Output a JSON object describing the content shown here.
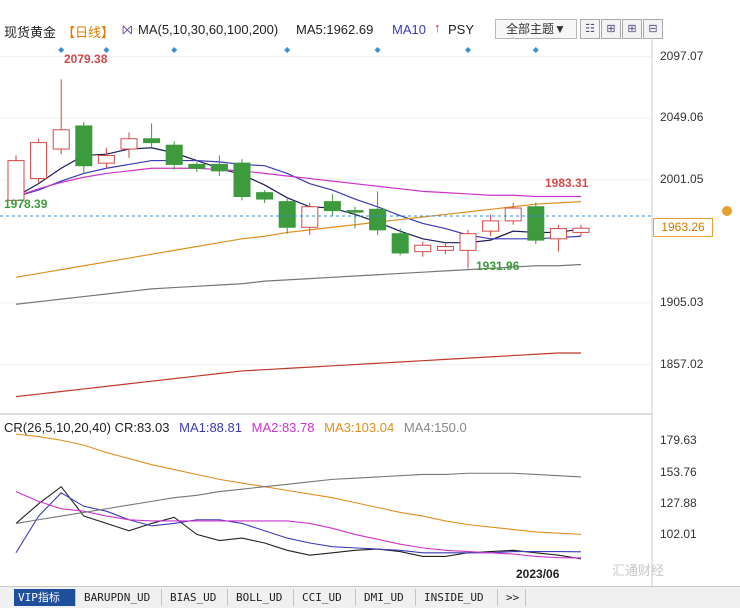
{
  "header": {
    "title": "现货黄金",
    "period": "【日线】",
    "ma_spec": "MA(5,10,30,60,100,200)",
    "ma5": "MA5:1962.69",
    "ma10": "MA10",
    "psy": "PSY",
    "theme_button": "全部主题▼"
  },
  "current_price": "1963.26",
  "indicator": {
    "cr": "CR(26,5,10,20,40) CR:83.03",
    "ma1": "MA1:88.81",
    "ma2": "MA2:83.78",
    "ma3": "MA3:103.04",
    "ma4": "MA4:150.0"
  },
  "x_label": "2023/06",
  "watermark": "汇通财经",
  "tabs": [
    "VIP指标",
    "BARUPDN_UD",
    "BIAS_UD",
    "BOLL_UD",
    "CCI_UD",
    "DMI_UD",
    "INSIDE_UD",
    ">>"
  ],
  "colors": {
    "up": "#d24a4a",
    "down": "#3d9a3d",
    "ma5": "#1a1a5a",
    "ma10": "#3b3bb8",
    "ma30": "#cc33cc",
    "ma60": "#e09020",
    "ma100": "#777777",
    "ma200": "#c0392b"
  },
  "chart_data": [
    {
      "type": "candlestick",
      "title": "现货黄金 日线",
      "ylim": [
        1820,
        2110
      ],
      "y_ticks": [
        2097.07,
        2049.06,
        2001.05,
        1963.26,
        1905.03,
        1857.02
      ],
      "annotations": [
        {
          "label": "2079.38",
          "value": 2079.38
        },
        {
          "label": "1983.31",
          "value": 1983.31
        },
        {
          "label": "1978.39",
          "value": 1978.39
        },
        {
          "label": "1931.96",
          "value": 1931.96
        }
      ],
      "candles": [
        {
          "o": 1985,
          "c": 2016,
          "h": 2020,
          "l": 1980
        },
        {
          "o": 2002,
          "c": 2030,
          "h": 2033,
          "l": 1999
        },
        {
          "o": 2025,
          "c": 2040,
          "h": 2079.38,
          "l": 2021
        },
        {
          "o": 2043,
          "c": 2012,
          "h": 2046,
          "l": 2006
        },
        {
          "o": 2014,
          "c": 2020,
          "h": 2026,
          "l": 2010
        },
        {
          "o": 2025,
          "c": 2033,
          "h": 2038,
          "l": 2018
        },
        {
          "o": 2033,
          "c": 2030,
          "h": 2045,
          "l": 2026
        },
        {
          "o": 2028,
          "c": 2013,
          "h": 2031,
          "l": 2009
        },
        {
          "o": 2013,
          "c": 2010,
          "h": 2015,
          "l": 2007
        },
        {
          "o": 2013,
          "c": 2008,
          "h": 2020,
          "l": 2004
        },
        {
          "o": 2014,
          "c": 1988,
          "h": 2017,
          "l": 1985
        },
        {
          "o": 1991,
          "c": 1986,
          "h": 1993,
          "l": 1983
        },
        {
          "o": 1984,
          "c": 1964,
          "h": 1986,
          "l": 1959
        },
        {
          "o": 1964,
          "c": 1980,
          "h": 1983,
          "l": 1958
        },
        {
          "o": 1984,
          "c": 1977,
          "h": 1990,
          "l": 1973
        },
        {
          "o": 1977,
          "c": 1976,
          "h": 1980,
          "l": 1963
        },
        {
          "o": 1978,
          "c": 1962,
          "h": 1992,
          "l": 1958
        },
        {
          "o": 1959,
          "c": 1944,
          "h": 1963,
          "l": 1942
        },
        {
          "o": 1945,
          "c": 1950,
          "h": 1953,
          "l": 1941
        },
        {
          "o": 1946,
          "c": 1949,
          "h": 1952,
          "l": 1943
        },
        {
          "o": 1946,
          "c": 1959,
          "h": 1962,
          "l": 1931.96
        },
        {
          "o": 1961,
          "c": 1969,
          "h": 1974,
          "l": 1957
        },
        {
          "o": 1969,
          "c": 1979,
          "h": 1983,
          "l": 1966
        },
        {
          "o": 1980,
          "c": 1954,
          "h": 1983.31,
          "l": 1951
        },
        {
          "o": 1955,
          "c": 1963,
          "h": 1966,
          "l": 1945
        },
        {
          "o": 1960,
          "c": 1963.26,
          "h": 1966,
          "l": 1957
        }
      ],
      "series": [
        {
          "name": "MA5",
          "color": "#1a1a5a",
          "values": [
            1988,
            1998,
            2010,
            2020,
            2021,
            2025,
            2026,
            2022,
            2016,
            2010,
            2005,
            1997,
            1987,
            1980,
            1979,
            1974,
            1968,
            1961,
            1955,
            1952,
            1952,
            1954,
            1961,
            1960,
            1960,
            1962.69
          ]
        },
        {
          "name": "MA10",
          "color": "#3b3bb8",
          "values": [
            1988,
            1993,
            2000,
            2006,
            2010,
            2013,
            2016,
            2016,
            2016,
            2015,
            2013,
            2012,
            2006,
            1998,
            1993,
            1986,
            1980,
            1973,
            1967,
            1963,
            1958,
            1955,
            1955,
            1955,
            1956,
            1957
          ]
        },
        {
          "name": "MA30",
          "color": "#cc33cc",
          "values": [
            1988,
            1994,
            1999,
            2003,
            2006,
            2008,
            2010,
            2010,
            2010,
            2009,
            2008,
            2006,
            2004,
            2002,
            2000,
            1998,
            1996,
            1994,
            1992,
            1991,
            1990,
            1989,
            1989,
            1988,
            1988,
            1988
          ]
        },
        {
          "name": "MA60",
          "color": "#e09020",
          "values": [
            1925,
            1928,
            1931,
            1934,
            1937,
            1940,
            1943,
            1946,
            1949,
            1952,
            1955,
            1957,
            1960,
            1962,
            1964,
            1966,
            1968,
            1970,
            1972,
            1974,
            1976,
            1978,
            1980,
            1982,
            1983,
            1984
          ]
        },
        {
          "name": "MA100",
          "color": "#777777",
          "values": [
            1904,
            1906,
            1908,
            1910,
            1912,
            1914,
            1916,
            1917,
            1918,
            1919,
            1920,
            1922,
            1923,
            1924,
            1925,
            1926,
            1927,
            1928,
            1929,
            1930,
            1931,
            1932,
            1933,
            1934,
            1934,
            1935
          ]
        },
        {
          "name": "MA200",
          "color": "#c0392b",
          "values": [
            1832,
            1834,
            1836,
            1838,
            1840,
            1842,
            1844,
            1846,
            1848,
            1850,
            1852,
            1853,
            1854,
            1855,
            1856,
            1857,
            1858,
            1859,
            1860,
            1861,
            1862,
            1863,
            1864,
            1865,
            1866,
            1866
          ]
        }
      ]
    },
    {
      "type": "line",
      "title": "CR(26,5,10,20,40)",
      "ylim": [
        78,
        190
      ],
      "y_ticks": [
        179.63,
        153.76,
        127.88,
        102.01
      ],
      "series": [
        {
          "name": "CR",
          "color": "#222222",
          "values": [
            112,
            128,
            142,
            118,
            112,
            106,
            112,
            117,
            103,
            98,
            100,
            96,
            90,
            86,
            88,
            90,
            91,
            89,
            85,
            85,
            88,
            89,
            90,
            88,
            86,
            83.03
          ]
        },
        {
          "name": "MA1",
          "color": "#3b3bb8",
          "values": [
            88,
            118,
            137,
            126,
            122,
            115,
            110,
            112,
            115,
            115,
            112,
            106,
            100,
            96,
            93,
            92,
            91,
            90,
            88,
            88,
            88,
            88,
            89,
            89,
            89,
            88.81
          ]
        },
        {
          "name": "MA2",
          "color": "#cc33cc",
          "values": [
            138,
            130,
            124,
            122,
            118,
            115,
            114,
            114,
            114,
            114,
            114,
            114,
            114,
            112,
            108,
            103,
            99,
            95,
            92,
            90,
            89,
            88,
            87,
            85,
            84,
            83.78
          ]
        },
        {
          "name": "MA3",
          "color": "#e09020",
          "values": [
            185,
            183,
            180,
            176,
            170,
            165,
            160,
            156,
            152,
            148,
            145,
            142,
            139,
            136,
            133,
            129,
            125,
            121,
            118,
            114,
            111,
            109,
            107,
            105,
            104,
            103.04
          ]
        },
        {
          "name": "MA4",
          "color": "#777777",
          "values": [
            112,
            115,
            118,
            121,
            124,
            127,
            130,
            133,
            135,
            138,
            140,
            142,
            144,
            146,
            148,
            149,
            150,
            151,
            152,
            152,
            153,
            153,
            153,
            152,
            151,
            150.0
          ]
        }
      ]
    }
  ]
}
